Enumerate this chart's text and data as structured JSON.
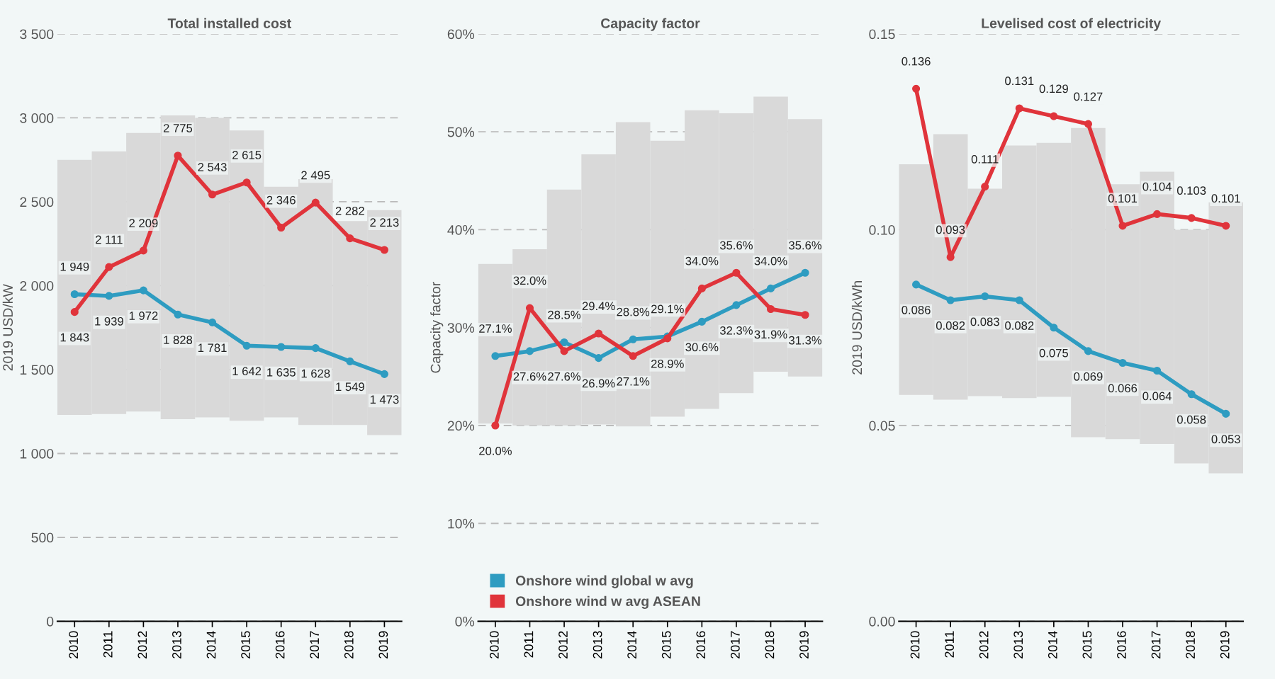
{
  "chart_data": [
    {
      "type": "line",
      "title": "Total installed cost",
      "ylabel": "2019 USD/kW",
      "categories": [
        "2010",
        "2011",
        "2012",
        "2013",
        "2014",
        "2015",
        "2016",
        "2017",
        "2018",
        "2019"
      ],
      "ylim": [
        0,
        3500
      ],
      "yticks": [
        {
          "value": 0,
          "label": "0"
        },
        {
          "value": 500,
          "label": "500"
        },
        {
          "value": 1000,
          "label": "1 000"
        },
        {
          "value": 1500,
          "label": "1 500"
        },
        {
          "value": 2000,
          "label": "2 000"
        },
        {
          "value": 2500,
          "label": "2 500"
        },
        {
          "value": 3000,
          "label": "3 000"
        },
        {
          "value": 3500,
          "label": "3 500"
        }
      ],
      "grid": "y",
      "legend": false,
      "marker": "circle",
      "series": [
        {
          "type": "bar",
          "color": "#d9d9d9",
          "base": [
            1230,
            1235,
            1250,
            1205,
            1215,
            1195,
            1215,
            1170,
            1170,
            1110
          ],
          "values": [
            1520,
            1565,
            1660,
            1810,
            1785,
            1730,
            1375,
            1465,
            1215,
            1340
          ]
        },
        {
          "color": "#2e9cc1",
          "values": [
            1949,
            1939,
            1972,
            1828,
            1781,
            1642,
            1635,
            1628,
            1549,
            1473
          ],
          "value_labels": [
            "1 949",
            "1 939",
            "1 972",
            "1 828",
            "1 781",
            "1 642",
            "1 635",
            "1 628",
            "1 549",
            "1 473"
          ]
        },
        {
          "color": "#e0343b",
          "values": [
            1843,
            2111,
            2209,
            2775,
            2543,
            2615,
            2346,
            2495,
            2282,
            2213
          ],
          "value_labels": [
            "1 843",
            "2 111",
            "2 209",
            "2 775",
            "2 543",
            "2 615",
            "2 346",
            "2 495",
            "2 282",
            "2 213"
          ]
        }
      ]
    },
    {
      "type": "line",
      "title": "Capacity factor",
      "ylabel": "Capacity factor",
      "categories": [
        "2010",
        "2011",
        "2012",
        "2013",
        "2014",
        "2015",
        "2016",
        "2017",
        "2018",
        "2019"
      ],
      "ylim": [
        0,
        60
      ],
      "yticks": [
        {
          "value": 0,
          "label": "0%"
        },
        {
          "value": 10,
          "label": "10%"
        },
        {
          "value": 20,
          "label": "20%"
        },
        {
          "value": 30,
          "label": "30%"
        },
        {
          "value": 40,
          "label": "40%"
        },
        {
          "value": 50,
          "label": "50%"
        },
        {
          "value": 60,
          "label": "60%"
        }
      ],
      "grid": "y",
      "legend": "bottom left",
      "marker": "circle",
      "series": [
        {
          "type": "bar",
          "color": "#d9d9d9",
          "base": [
            20.2,
            20.0,
            20.0,
            20.1,
            19.9,
            20.9,
            21.7,
            23.3,
            25.5,
            25.0
          ],
          "values": [
            16.3,
            18.0,
            24.1,
            27.6,
            31.1,
            28.2,
            30.5,
            28.6,
            28.1,
            26.3
          ]
        },
        {
          "name": "Onshore wind global w avg",
          "color": "#2e9cc1",
          "values": [
            27.1,
            27.6,
            28.5,
            26.9,
            28.8,
            29.1,
            30.6,
            32.3,
            34.0,
            35.6
          ],
          "value_labels": [
            "27.1%",
            "27.6%",
            "28.5%",
            "26.9%",
            "28.8%",
            "29.1%",
            "30.6%",
            "32.3%",
            "34.0%",
            "35.6%"
          ]
        },
        {
          "name": "Onshore wind w avg ASEAN",
          "color": "#e0343b",
          "values": [
            20.0,
            32.0,
            27.6,
            29.4,
            27.1,
            28.9,
            34.0,
            35.6,
            31.9,
            31.3
          ],
          "value_labels": [
            "20.0%",
            "32.0%",
            "27.6%",
            "29.4%",
            "27.1%",
            "28.9%",
            "34.0%",
            "35.6%",
            "31.9%",
            "31.3%"
          ]
        }
      ]
    },
    {
      "type": "line",
      "title": "Levelised cost of electricity",
      "ylabel": "2019 USD/kWh",
      "categories": [
        "2010",
        "2011",
        "2012",
        "2013",
        "2014",
        "2015",
        "2016",
        "2017",
        "2018",
        "2019"
      ],
      "ylim": [
        0,
        0.15
      ],
      "yticks": [
        {
          "value": 0,
          "label": "0.00"
        },
        {
          "value": 0.05,
          "label": "0.05"
        },
        {
          "value": 0.1,
          "label": "0.10"
        },
        {
          "value": 0.15,
          "label": "0.15"
        }
      ],
      "grid": "y",
      "legend": false,
      "marker": "circle",
      "series": [
        {
          "type": "bar",
          "color": "#d9d9d9",
          "base": [
            0.0578,
            0.0566,
            0.0575,
            0.057,
            0.0573,
            0.047,
            0.0465,
            0.0453,
            0.0403,
            0.0378
          ],
          "values": [
            0.0589,
            0.0678,
            0.053,
            0.0645,
            0.0649,
            0.079,
            0.0651,
            0.0695,
            0.0597,
            0.0692
          ]
        },
        {
          "color": "#2e9cc1",
          "values": [
            0.086,
            0.082,
            0.083,
            0.082,
            0.075,
            0.069,
            0.066,
            0.064,
            0.058,
            0.053
          ],
          "value_labels": [
            "0.086",
            "0.082",
            "0.083",
            "0.082",
            "0.075",
            "0.069",
            "0.066",
            "0.064",
            "0.058",
            "0.053"
          ]
        },
        {
          "color": "#e0343b",
          "values": [
            0.136,
            0.093,
            0.111,
            0.131,
            0.129,
            0.127,
            0.101,
            0.104,
            0.103,
            0.101
          ],
          "value_labels": [
            "0.136",
            "0.093",
            "0.111",
            "0.131",
            "0.129",
            "0.127",
            "0.101",
            "0.104",
            "0.103",
            "0.101"
          ]
        }
      ]
    }
  ]
}
